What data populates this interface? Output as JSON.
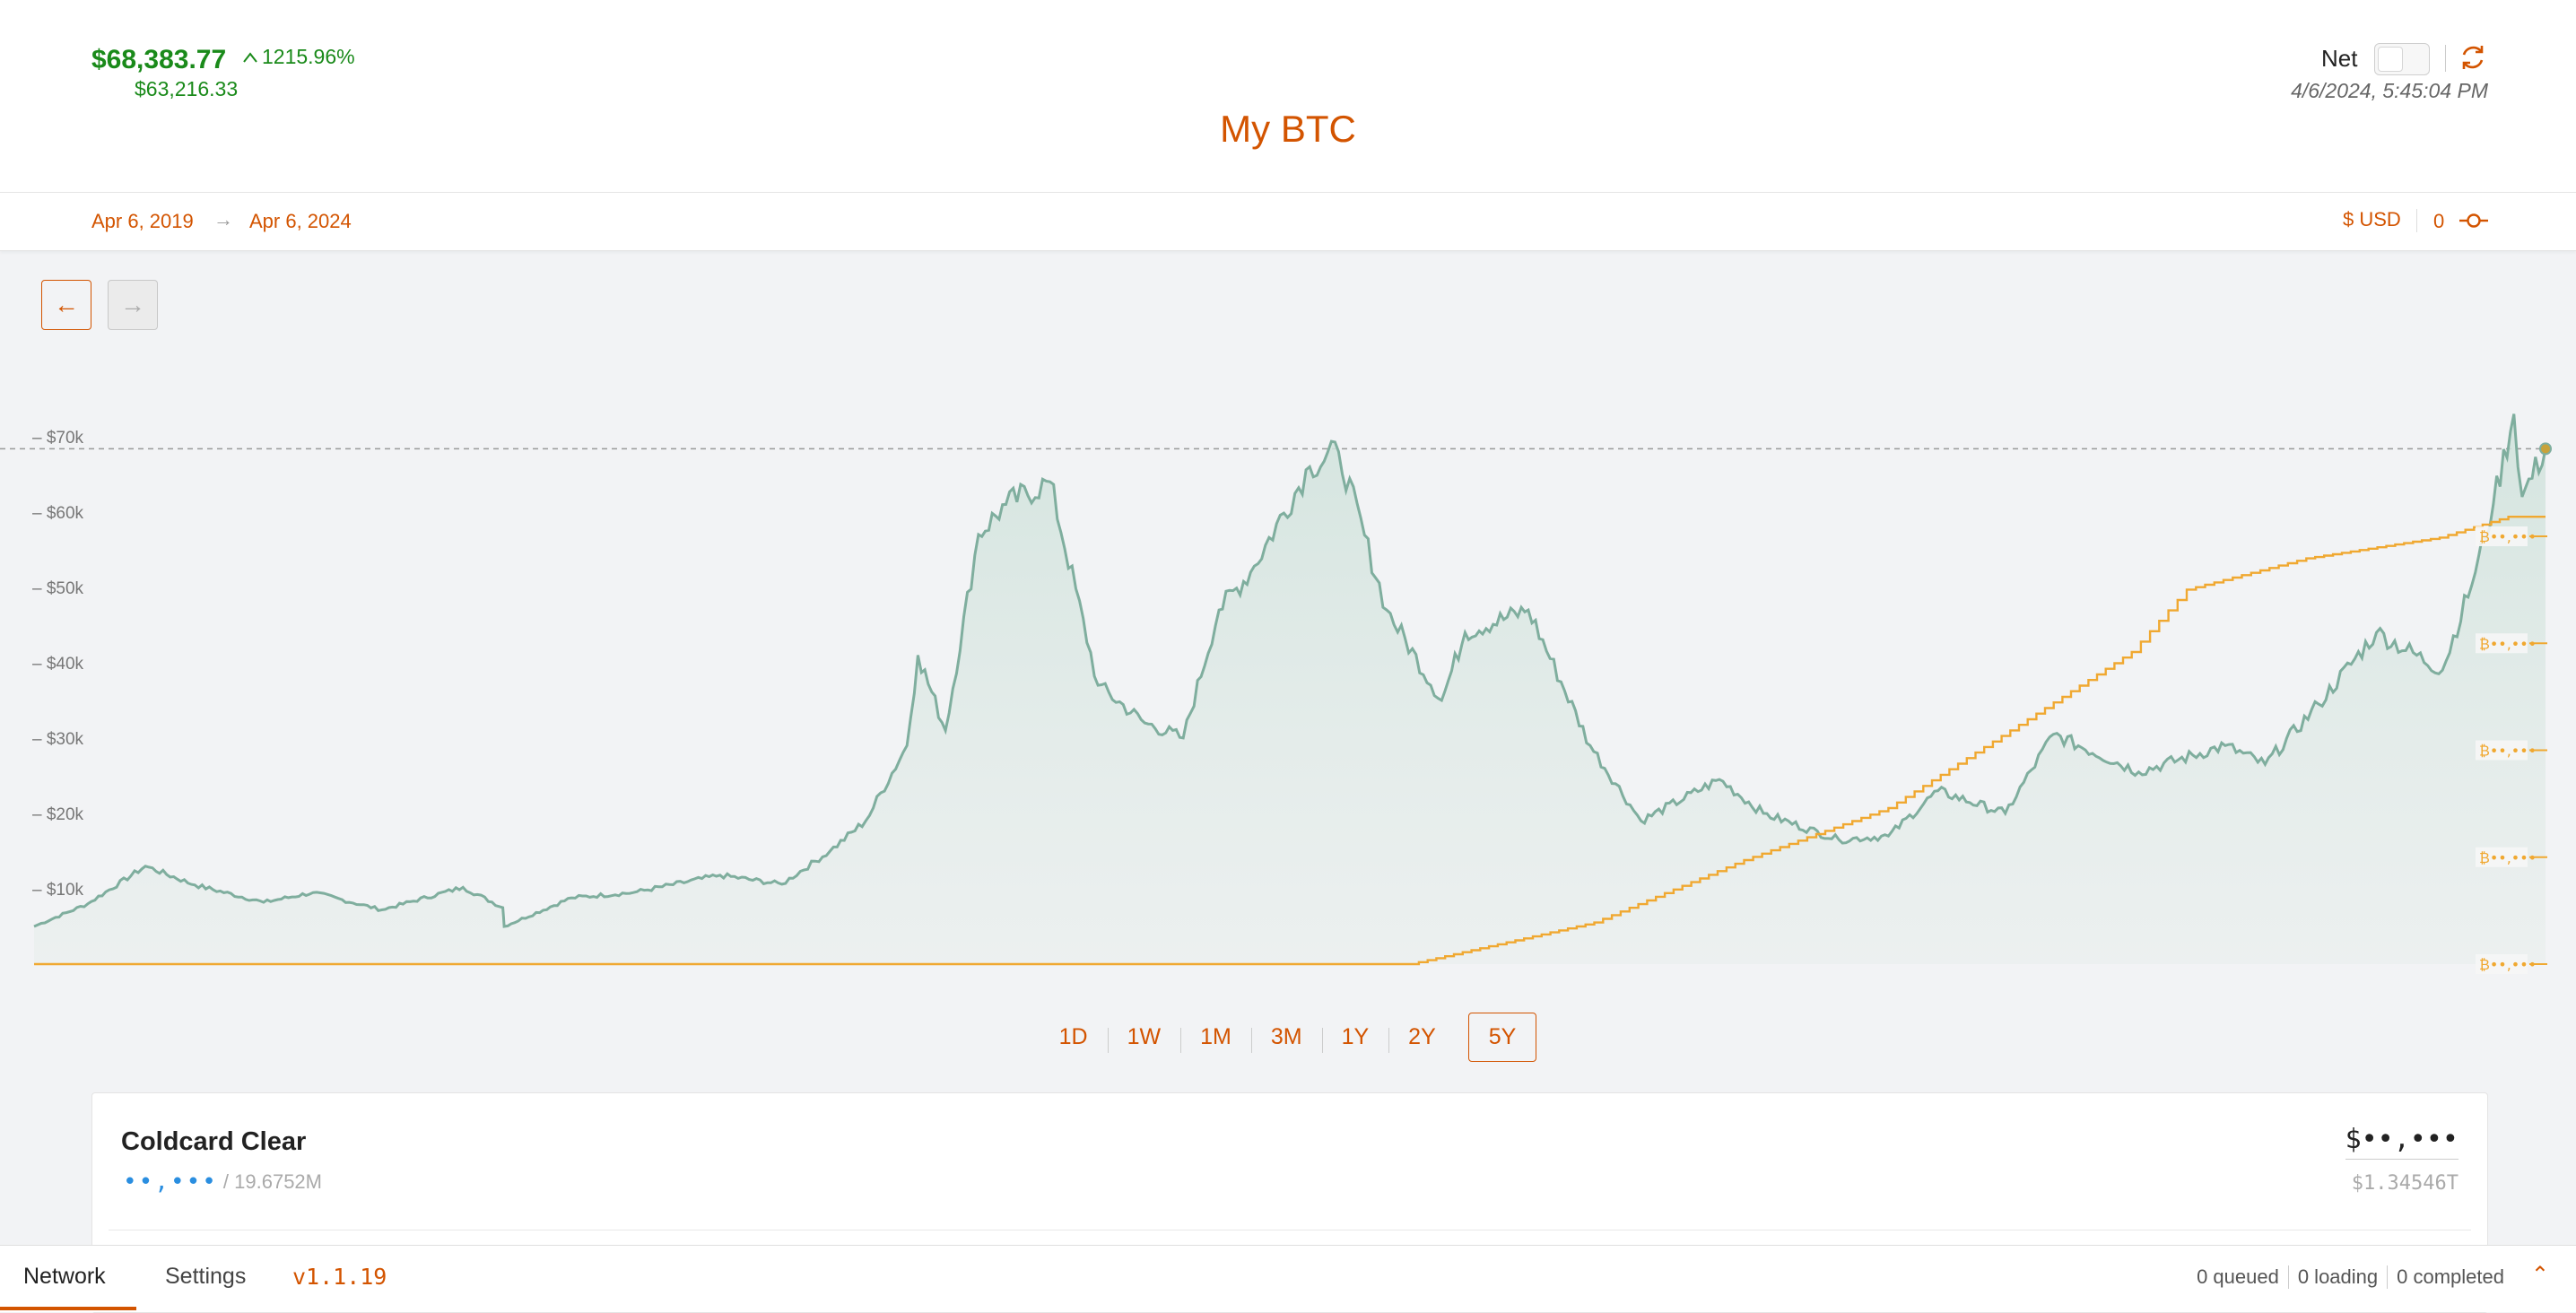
{
  "header": {
    "value": "$68,383.77",
    "change_pct": "1215.96%",
    "cost_basis": "$63,216.33",
    "title": "My BTC",
    "net_label": "Net",
    "net_enabled": false,
    "timestamp": "4/6/2024, 5:45:04 PM"
  },
  "range": {
    "start": "Apr 6, 2019",
    "end": "Apr 6, 2024",
    "currency": "$ USD",
    "count": "0"
  },
  "timeframes": {
    "options": [
      "1D",
      "1W",
      "1M",
      "3M",
      "1Y",
      "2Y",
      "5Y"
    ],
    "active": "5Y"
  },
  "wallet": {
    "name": "Coldcard Clear",
    "balance_hidden": "••,•••",
    "supply": "/ 19.6752M",
    "usd_hidden": "$••,•••",
    "total": "$1.34546T"
  },
  "footer": {
    "tabs": [
      "Network",
      "Settings"
    ],
    "version": "v1.1.19",
    "queued": "0 queued",
    "loading": "0 loading",
    "completed": "0 completed"
  },
  "colors": {
    "accent": "#d35400",
    "positive": "#1a8a1a",
    "price_line": "#7fae9e",
    "holdings_line": "#f0a830",
    "hidden_value": "#2a8ee0"
  },
  "chart_data": {
    "type": "area",
    "ylim": [
      0,
      72000
    ],
    "y_ticks": [
      10000,
      20000,
      30000,
      40000,
      50000,
      60000,
      70000
    ],
    "y_tick_labels": [
      "$10k",
      "$20k",
      "$30k",
      "$40k",
      "$50k",
      "$60k",
      "$70k"
    ],
    "reference_line": 68383.77,
    "holdings_marker_label": "₿••,•••",
    "holdings_marker_count": 5,
    "series": [
      {
        "x": [
          "2019-04-06",
          "2019-05-15",
          "2019-06-26",
          "2019-08-01",
          "2019-09-20",
          "2019-10-26",
          "2019-12-15",
          "2020-02-12",
          "2020-03-12",
          "2020-03-13",
          "2020-05-01",
          "2020-06-15",
          "2020-08-17",
          "2020-10-01",
          "2020-11-05",
          "2020-12-01",
          "2020-12-31",
          "2021-01-08",
          "2021-01-28",
          "2021-02-21",
          "2021-03-13",
          "2021-04-14",
          "2021-05-19",
          "2021-06-22",
          "2021-07-20",
          "2021-08-15",
          "2021-09-07",
          "2021-10-20",
          "2021-11-10",
          "2021-12-15",
          "2022-01-24",
          "2022-02-10",
          "2022-03-28",
          "2022-05-12",
          "2022-06-18",
          "2022-08-14",
          "2022-09-15",
          "2022-11-09",
          "2022-12-15",
          "2023-01-20",
          "2023-03-10",
          "2023-04-14",
          "2023-06-15",
          "2023-08-17",
          "2023-09-15",
          "2023-10-24",
          "2023-12-05",
          "2024-01-22",
          "2024-02-15",
          "2024-02-28",
          "2024-03-14",
          "2024-03-20",
          "2024-04-06"
        ],
        "values": [
          5000,
          8000,
          13000,
          10500,
          8200,
          9500,
          7200,
          10200,
          7500,
          5000,
          8800,
          9500,
          11800,
          10600,
          15000,
          19000,
          29000,
          41000,
          31000,
          57000,
          61000,
          64000,
          37000,
          32000,
          30000,
          47000,
          52000,
          66000,
          68000,
          47000,
          35000,
          44000,
          47000,
          29000,
          19000,
          24500,
          20000,
          16500,
          17000,
          23000,
          20000,
          30500,
          25500,
          29000,
          26500,
          34500,
          44000,
          39000,
          52000,
          61000,
          73000,
          62000,
          68383.77
        ]
      },
      {
        "x": [
          "2019-04-06",
          "2022-01-01",
          "2022-05-15",
          "2022-09-01",
          "2022-12-15",
          "2023-03-20",
          "2023-06-10",
          "2023-07-20",
          "2023-10-15",
          "2024-01-20",
          "2024-03-10",
          "2024-04-06"
        ],
        "values": [
          0,
          0,
          0.08,
          0.2,
          0.3,
          0.46,
          0.6,
          0.72,
          0.78,
          0.82,
          0.86,
          0.86
        ]
      }
    ]
  }
}
